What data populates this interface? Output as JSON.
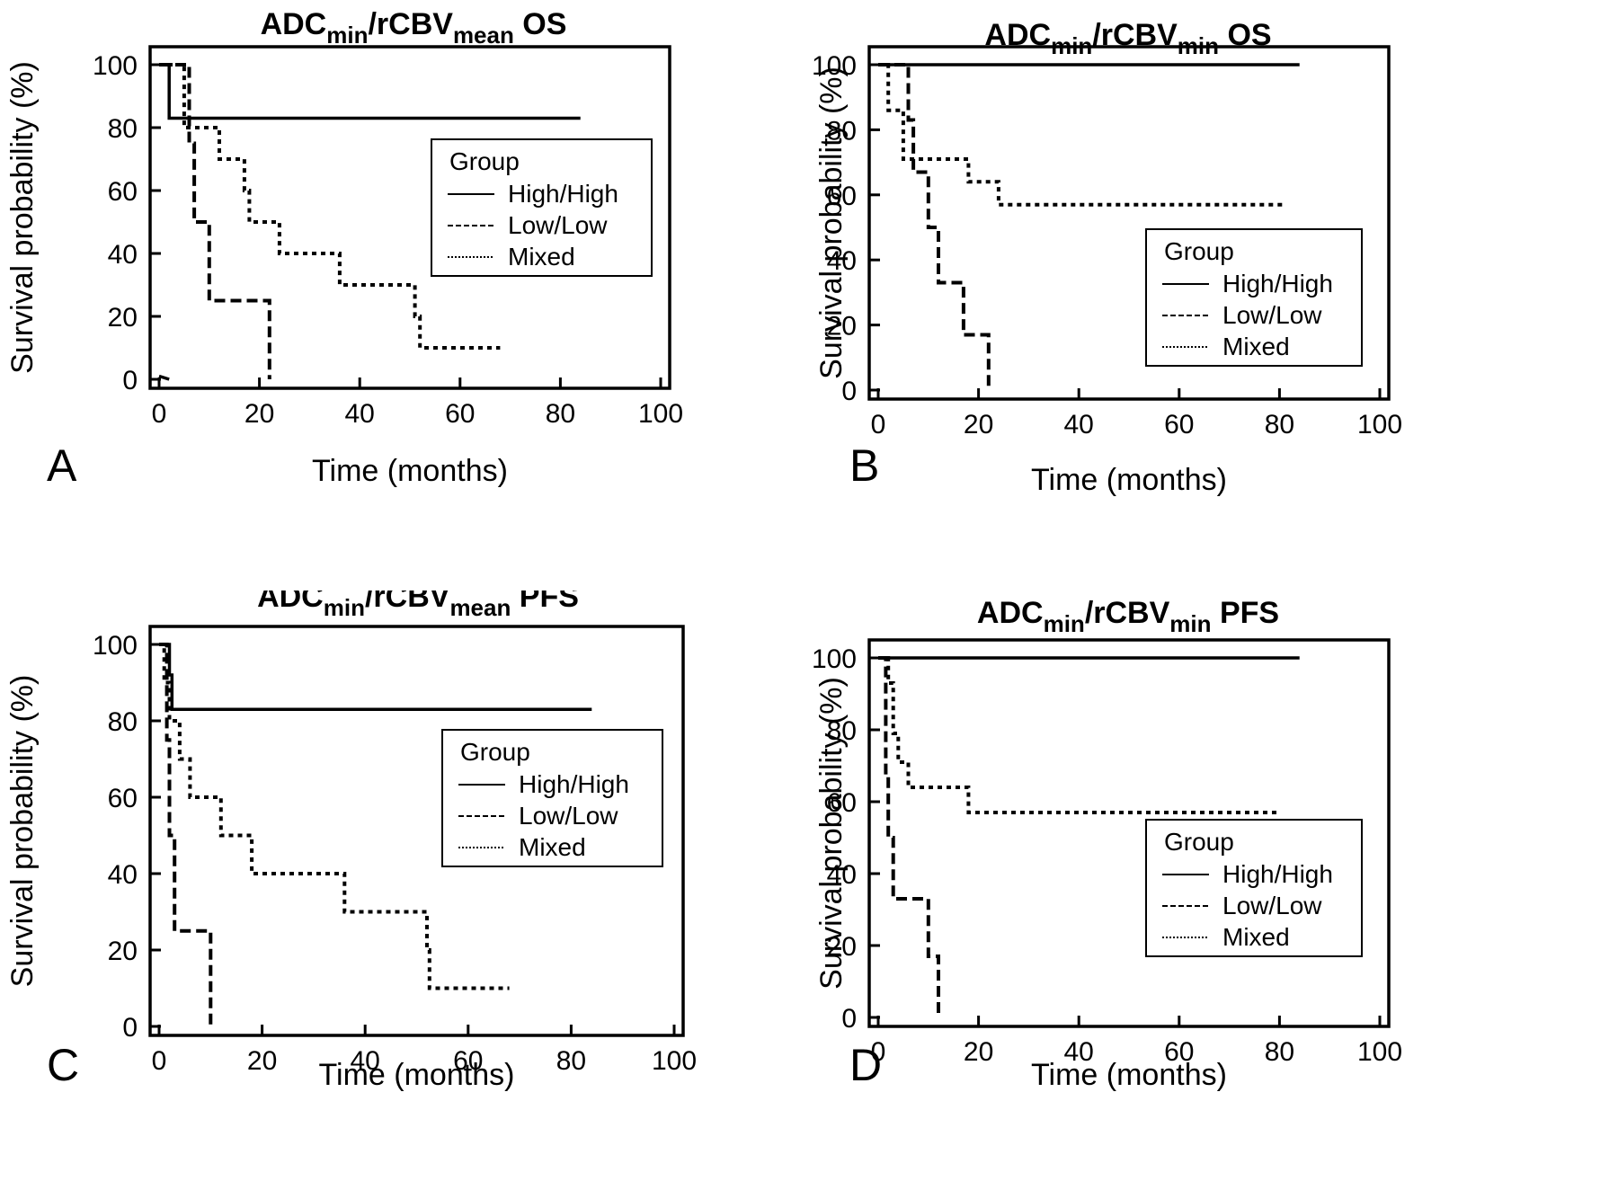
{
  "x_label": "Time (months)",
  "y_label": "Survival probability (%)",
  "x_ticks": [
    "0",
    "20",
    "40",
    "60",
    "80",
    "100"
  ],
  "y_ticks": [
    "0",
    "20",
    "40",
    "60",
    "80",
    "100"
  ],
  "legend_title": "Group",
  "series_names": [
    "High/High",
    "Low/Low",
    "Mixed"
  ],
  "chart_data": [
    {
      "type": "line",
      "panel_letter": "A",
      "title": {
        "base": "ADC",
        "sub1": "min",
        "mid": "/rCBV",
        "sub2": "mean",
        "tail": " OS"
      },
      "xlim": [
        0,
        100
      ],
      "ylim": [
        0,
        100
      ],
      "legend_position": "right",
      "series": [
        {
          "name": "High/High",
          "style": "solid",
          "steps": [
            [
              0,
              100
            ],
            [
              2,
              100
            ],
            [
              2,
              83
            ],
            [
              84,
              83
            ]
          ]
        },
        {
          "name": "Low/Low",
          "style": "dashed",
          "steps": [
            [
              0,
              100
            ],
            [
              6,
              100
            ],
            [
              6,
              75
            ],
            [
              7,
              75
            ],
            [
              7,
              50
            ],
            [
              10,
              50
            ],
            [
              10,
              25
            ],
            [
              22,
              25
            ],
            [
              22,
              0
            ]
          ]
        },
        {
          "name": "Mixed",
          "style": "dotted",
          "steps": [
            [
              0,
              100
            ],
            [
              5,
              100
            ],
            [
              5,
              80
            ],
            [
              12,
              80
            ],
            [
              12,
              70
            ],
            [
              17,
              70
            ],
            [
              17,
              60
            ],
            [
              18,
              60
            ],
            [
              18,
              50
            ],
            [
              24,
              50
            ],
            [
              24,
              40
            ],
            [
              36,
              40
            ],
            [
              36,
              30
            ],
            [
              51,
              30
            ],
            [
              51,
              20
            ],
            [
              52,
              20
            ],
            [
              52,
              10
            ],
            [
              68,
              10
            ]
          ]
        }
      ],
      "extra_segments": [
        {
          "style": "solid",
          "steps": [
            [
              0,
              1
            ],
            [
              2,
              0
            ]
          ]
        }
      ]
    },
    {
      "type": "line",
      "panel_letter": "B",
      "title": {
        "base": "ADC",
        "sub1": "min",
        "mid": "/rCBV",
        "sub2": "min",
        "tail": " OS"
      },
      "xlim": [
        0,
        100
      ],
      "ylim": [
        0,
        100
      ],
      "legend_position": "bottom-right",
      "series": [
        {
          "name": "High/High",
          "style": "solid",
          "steps": [
            [
              0,
              100
            ],
            [
              84,
              100
            ]
          ]
        },
        {
          "name": "Low/Low",
          "style": "dashed",
          "steps": [
            [
              0,
              100
            ],
            [
              6,
              100
            ],
            [
              6,
              83
            ],
            [
              7,
              83
            ],
            [
              7,
              67
            ],
            [
              10,
              67
            ],
            [
              10,
              50
            ],
            [
              12,
              50
            ],
            [
              12,
              33
            ],
            [
              17,
              33
            ],
            [
              17,
              17
            ],
            [
              22,
              17
            ],
            [
              22,
              0
            ]
          ]
        },
        {
          "name": "Mixed",
          "style": "dotted",
          "steps": [
            [
              0,
              100
            ],
            [
              2,
              100
            ],
            [
              2,
              86
            ],
            [
              5,
              86
            ],
            [
              5,
              71
            ],
            [
              18,
              71
            ],
            [
              18,
              64
            ],
            [
              24,
              64
            ],
            [
              24,
              57
            ],
            [
              81,
              57
            ]
          ]
        }
      ],
      "extra_segments": []
    },
    {
      "type": "line",
      "panel_letter": "C",
      "title": {
        "base": "ADC",
        "sub1": "min",
        "mid": "/rCBV",
        "sub2": "mean",
        "tail": " PFS"
      },
      "xlim": [
        0,
        100
      ],
      "ylim": [
        0,
        100
      ],
      "legend_position": "right",
      "series": [
        {
          "name": "High/High",
          "style": "solid",
          "steps": [
            [
              0,
              100
            ],
            [
              2,
              100
            ],
            [
              2,
              92
            ],
            [
              2.5,
              92
            ],
            [
              2.5,
              83
            ],
            [
              84,
              83
            ]
          ]
        },
        {
          "name": "Low/Low",
          "style": "dashed",
          "steps": [
            [
              0,
              100
            ],
            [
              1.5,
              100
            ],
            [
              1.5,
              75
            ],
            [
              2,
              75
            ],
            [
              2,
              50
            ],
            [
              3,
              50
            ],
            [
              3,
              25
            ],
            [
              10,
              25
            ],
            [
              10,
              0
            ]
          ]
        },
        {
          "name": "Mixed",
          "style": "dotted",
          "steps": [
            [
              0,
              100
            ],
            [
              1,
              100
            ],
            [
              1,
              90
            ],
            [
              2,
              90
            ],
            [
              2,
              80
            ],
            [
              4,
              80
            ],
            [
              4,
              70
            ],
            [
              6,
              70
            ],
            [
              6,
              60
            ],
            [
              12,
              60
            ],
            [
              12,
              50
            ],
            [
              18,
              50
            ],
            [
              18,
              40
            ],
            [
              36,
              40
            ],
            [
              36,
              30
            ],
            [
              52,
              30
            ],
            [
              52,
              20
            ],
            [
              52.5,
              20
            ],
            [
              52.5,
              10
            ],
            [
              68,
              10
            ]
          ]
        }
      ],
      "extra_segments": []
    },
    {
      "type": "line",
      "panel_letter": "D",
      "title": {
        "base": "ADC",
        "sub1": "min",
        "mid": "/rCBV",
        "sub2": "min",
        "tail": " PFS"
      },
      "xlim": [
        0,
        100
      ],
      "ylim": [
        0,
        100
      ],
      "legend_position": "bottom-right",
      "series": [
        {
          "name": "High/High",
          "style": "solid",
          "steps": [
            [
              0,
              100
            ],
            [
              84,
              100
            ]
          ]
        },
        {
          "name": "Low/Low",
          "style": "dashed",
          "steps": [
            [
              0,
              100
            ],
            [
              1.5,
              100
            ],
            [
              1.5,
              67
            ],
            [
              2,
              67
            ],
            [
              2,
              50
            ],
            [
              3,
              50
            ],
            [
              3,
              33
            ],
            [
              10,
              33
            ],
            [
              10,
              17
            ],
            [
              12,
              17
            ],
            [
              12,
              0
            ]
          ]
        },
        {
          "name": "Mixed",
          "style": "dotted",
          "steps": [
            [
              0,
              100
            ],
            [
              2,
              100
            ],
            [
              2,
              93
            ],
            [
              3,
              93
            ],
            [
              3,
              79
            ],
            [
              4,
              79
            ],
            [
              4,
              71
            ],
            [
              6,
              71
            ],
            [
              6,
              64
            ],
            [
              18,
              64
            ],
            [
              18,
              57
            ],
            [
              80,
              57
            ]
          ]
        }
      ],
      "extra_segments": []
    }
  ]
}
